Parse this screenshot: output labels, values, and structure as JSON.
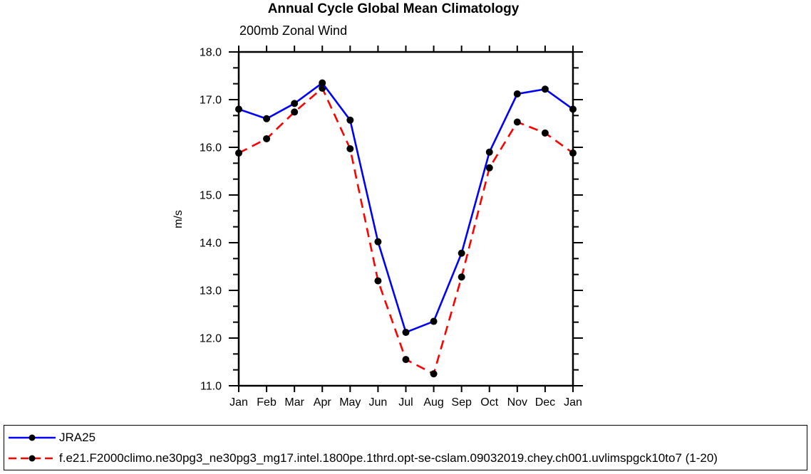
{
  "chart_data": {
    "type": "line",
    "title": "Annual Cycle Global Mean Climatology",
    "subtitle": "200mb Zonal Wind",
    "ylabel": "m/s",
    "xlabel": "",
    "categories": [
      "Jan",
      "Feb",
      "Mar",
      "Apr",
      "May",
      "Jun",
      "Jul",
      "Aug",
      "Sep",
      "Oct",
      "Nov",
      "Dec",
      "Jan"
    ],
    "ylim": [
      11.0,
      18.0
    ],
    "ytick_step": 1.0,
    "ytick_labels": [
      "11.0",
      "12.0",
      "13.0",
      "14.0",
      "15.0",
      "16.0",
      "17.0",
      "18.0"
    ],
    "minor_ticks_per_major": 2,
    "grid": false,
    "legend_position": "bottom-box",
    "series": [
      {
        "name": "JRA25",
        "color": "#0000ff",
        "line_style": "solid",
        "marker": "filled-circle",
        "marker_color": "#000000",
        "values": [
          16.8,
          16.6,
          16.92,
          17.35,
          16.57,
          14.02,
          12.12,
          12.35,
          13.78,
          15.9,
          17.12,
          17.22,
          16.8
        ]
      },
      {
        "name": "f.e21.F2000climo.ne30pg3_ne30pg3_mg17.intel.1800pe.1thrd.opt-se-cslam.09032019.chey.ch001.uvlimspgck10to7 (1-20)",
        "color": "#ff0000",
        "line_style": "dashed",
        "marker": "filled-circle",
        "marker_color": "#000000",
        "values": [
          15.88,
          16.18,
          16.74,
          17.24,
          15.97,
          13.2,
          11.55,
          11.25,
          13.28,
          15.57,
          16.53,
          16.3,
          15.88
        ]
      }
    ]
  },
  "colors": {
    "axis": "#000000",
    "background": "#ffffff",
    "text": "#000000"
  }
}
